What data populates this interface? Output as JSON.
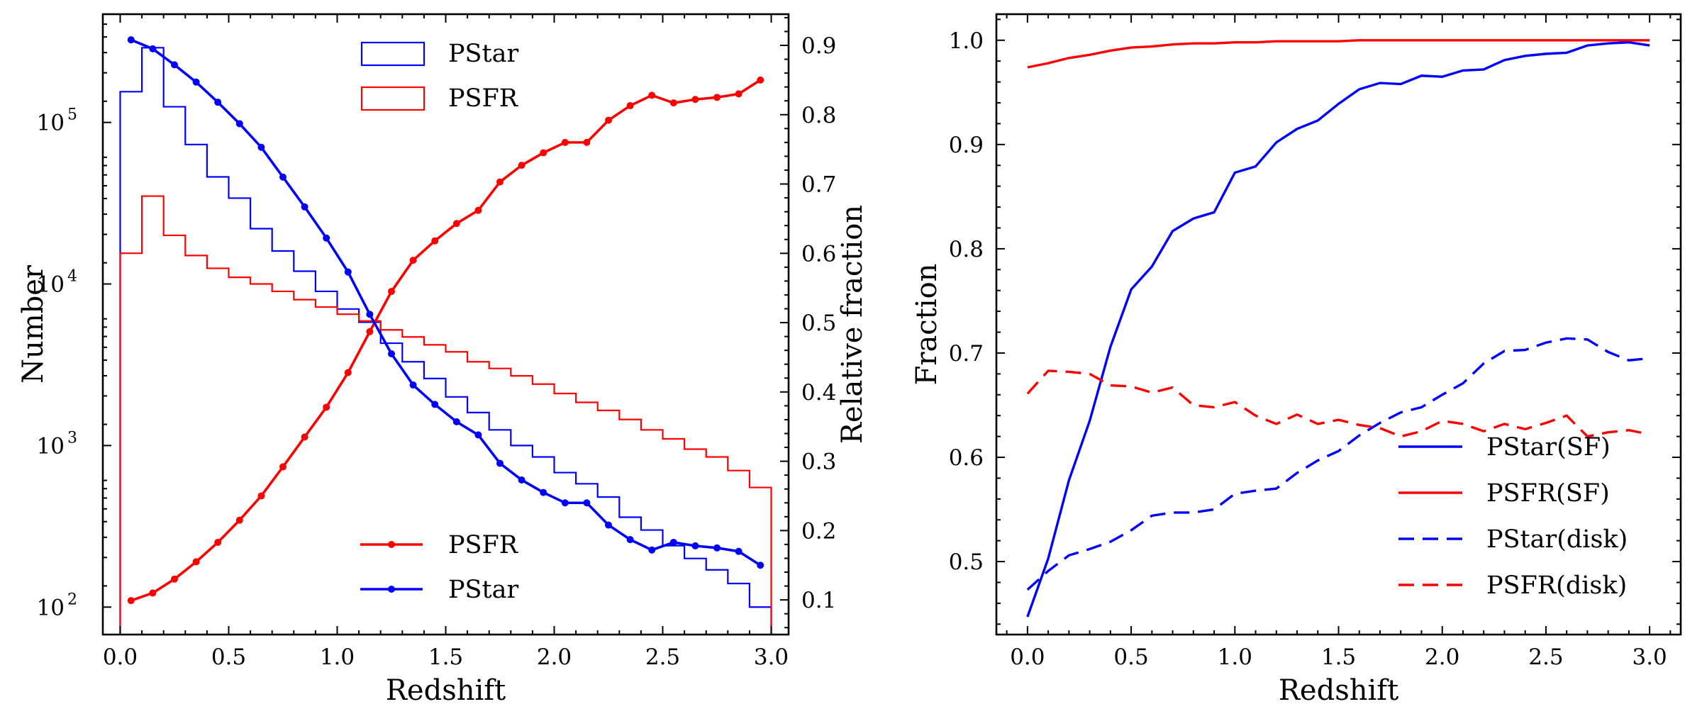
{
  "chart_data": [
    {
      "type": "line",
      "title": "",
      "xlabel": "Redshift",
      "ylabel": "Number",
      "y2label": "Relative fraction",
      "xlim": [
        -0.08,
        3.08
      ],
      "ylim_log10": [
        1.83,
        5.67
      ],
      "y2lim": [
        0.05,
        0.945
      ],
      "x_ticks": [
        0.0,
        0.5,
        1.0,
        1.5,
        2.0,
        2.5,
        3.0
      ],
      "x_tick_labels": [
        "0.0",
        "0.5",
        "1.0",
        "1.5",
        "2.0",
        "2.5",
        "3.0"
      ],
      "y_ticks_log10": [
        2,
        3,
        4,
        5
      ],
      "y_tick_labels": [
        "10",
        "10",
        "10",
        "10"
      ],
      "y_tick_exponents": [
        "2",
        "3",
        "4",
        "5"
      ],
      "y2_ticks": [
        0.1,
        0.2,
        0.3,
        0.4,
        0.5,
        0.6,
        0.7,
        0.8,
        0.9
      ],
      "y2_tick_labels": [
        "0.1",
        "0.2",
        "0.3",
        "0.4",
        "0.5",
        "0.6",
        "0.7",
        "0.8",
        "0.9"
      ],
      "histogram_bin_edges": [
        0.0,
        0.1,
        0.2,
        0.3,
        0.4,
        0.5,
        0.6,
        0.7,
        0.8,
        0.9,
        1.0,
        1.1,
        1.2,
        1.3,
        1.4,
        1.5,
        1.6,
        1.7,
        1.8,
        1.9,
        2.0,
        2.1,
        2.2,
        2.3,
        2.4,
        2.5,
        2.6,
        2.7,
        2.8,
        2.9,
        3.0
      ],
      "histograms": [
        {
          "name": "PStar",
          "color": "#0000ff",
          "counts": [
            155000,
            290000,
            125000,
            73000,
            46000,
            34000,
            22000,
            16000,
            12000,
            9000,
            7000,
            5800,
            4300,
            3300,
            2600,
            2000,
            1600,
            1250,
            1000,
            850,
            680,
            580,
            480,
            360,
            300,
            240,
            200,
            170,
            140,
            100
          ]
        },
        {
          "name": "PSFR",
          "color": "#ff0000",
          "counts": [
            15500,
            35000,
            20000,
            15000,
            12500,
            11000,
            10000,
            9000,
            8000,
            7200,
            6500,
            5900,
            5200,
            4700,
            4200,
            3800,
            3300,
            3000,
            2700,
            2400,
            2100,
            1850,
            1650,
            1450,
            1250,
            1100,
            950,
            850,
            700,
            550
          ]
        }
      ],
      "series": [
        {
          "name": "PSFR",
          "axis": "right",
          "color": "#ff0000",
          "x": [
            0.05,
            0.15,
            0.25,
            0.35,
            0.45,
            0.55,
            0.65,
            0.75,
            0.85,
            0.95,
            1.05,
            1.15,
            1.25,
            1.35,
            1.45,
            1.55,
            1.65,
            1.75,
            1.85,
            1.95,
            2.05,
            2.15,
            2.25,
            2.35,
            2.45,
            2.55,
            2.65,
            2.75,
            2.85,
            2.95
          ],
          "values": [
            0.099,
            0.11,
            0.13,
            0.155,
            0.183,
            0.215,
            0.25,
            0.292,
            0.335,
            0.378,
            0.428,
            0.487,
            0.545,
            0.59,
            0.618,
            0.643,
            0.662,
            0.703,
            0.727,
            0.745,
            0.76,
            0.76,
            0.792,
            0.813,
            0.828,
            0.817,
            0.822,
            0.825,
            0.83,
            0.85
          ]
        },
        {
          "name": "PStar",
          "axis": "right",
          "color": "#0000ff",
          "x": [
            0.05,
            0.15,
            0.25,
            0.35,
            0.45,
            0.55,
            0.65,
            0.75,
            0.85,
            0.95,
            1.05,
            1.15,
            1.25,
            1.35,
            1.45,
            1.55,
            1.65,
            1.75,
            1.85,
            1.95,
            2.05,
            2.15,
            2.25,
            2.35,
            2.45,
            2.55,
            2.65,
            2.75,
            2.85,
            2.95
          ],
          "values": [
            0.908,
            0.895,
            0.872,
            0.847,
            0.818,
            0.787,
            0.753,
            0.71,
            0.667,
            0.622,
            0.573,
            0.512,
            0.455,
            0.41,
            0.382,
            0.357,
            0.338,
            0.297,
            0.273,
            0.255,
            0.24,
            0.24,
            0.208,
            0.187,
            0.172,
            0.183,
            0.178,
            0.175,
            0.17,
            0.15
          ]
        }
      ],
      "legends": [
        {
          "position": "top-center",
          "entries": [
            {
              "label": "PStar",
              "color": "#0000ff",
              "style": "step"
            },
            {
              "label": "PSFR",
              "color": "#ff0000",
              "style": "step"
            }
          ]
        },
        {
          "position": "bottom-center",
          "entries": [
            {
              "label": "PSFR",
              "color": "#ff0000",
              "style": "line-marker"
            },
            {
              "label": "PStar",
              "color": "#0000ff",
              "style": "line-marker"
            }
          ]
        }
      ]
    },
    {
      "type": "line",
      "title": "",
      "xlabel": "Redshift",
      "ylabel": "Fraction",
      "xlim": [
        -0.15,
        3.15
      ],
      "ylim": [
        0.43,
        1.025
      ],
      "x_ticks": [
        0.0,
        0.5,
        1.0,
        1.5,
        2.0,
        2.5,
        3.0
      ],
      "x_tick_labels": [
        "0.0",
        "0.5",
        "1.0",
        "1.5",
        "2.0",
        "2.5",
        "3.0"
      ],
      "y_ticks": [
        0.5,
        0.6,
        0.7,
        0.8,
        0.9,
        1.0
      ],
      "y_tick_labels": [
        "0.5",
        "0.6",
        "0.7",
        "0.8",
        "0.9",
        "1.0"
      ],
      "x": [
        0.0,
        0.1,
        0.2,
        0.3,
        0.4,
        0.5,
        0.6,
        0.7,
        0.8,
        0.9,
        1.0,
        1.1,
        1.2,
        1.3,
        1.4,
        1.5,
        1.6,
        1.7,
        1.8,
        1.9,
        2.0,
        2.1,
        2.2,
        2.3,
        2.4,
        2.5,
        2.6,
        2.7,
        2.8,
        2.9,
        3.0
      ],
      "series": [
        {
          "name": "PStar(SF)",
          "color": "#0000ff",
          "dash": "solid",
          "values": [
            0.447,
            0.503,
            0.578,
            0.635,
            0.706,
            0.761,
            0.783,
            0.817,
            0.829,
            0.835,
            0.873,
            0.879,
            0.902,
            0.915,
            0.923,
            0.939,
            0.953,
            0.959,
            0.958,
            0.966,
            0.965,
            0.971,
            0.972,
            0.981,
            0.985,
            0.987,
            0.988,
            0.995,
            0.997,
            0.998,
            0.995
          ]
        },
        {
          "name": "PSFR(SF)",
          "color": "#ff0000",
          "dash": "solid",
          "values": [
            0.974,
            0.978,
            0.983,
            0.986,
            0.99,
            0.993,
            0.994,
            0.996,
            0.997,
            0.997,
            0.998,
            0.998,
            0.999,
            0.999,
            0.999,
            0.999,
            1.0,
            1.0,
            1.0,
            1.0,
            1.0,
            1.0,
            1.0,
            1.0,
            1.0,
            1.0,
            1.0,
            1.0,
            1.0,
            1.0,
            1.0
          ]
        },
        {
          "name": "PStar(disk)",
          "color": "#0000ff",
          "dash": "dashed",
          "values": [
            0.473,
            0.491,
            0.506,
            0.512,
            0.519,
            0.53,
            0.544,
            0.547,
            0.547,
            0.55,
            0.565,
            0.568,
            0.57,
            0.585,
            0.597,
            0.606,
            0.621,
            0.633,
            0.643,
            0.648,
            0.66,
            0.671,
            0.69,
            0.702,
            0.703,
            0.71,
            0.714,
            0.713,
            0.701,
            0.693,
            0.695
          ]
        },
        {
          "name": "PSFR(disk)",
          "color": "#ff0000",
          "dash": "dashed",
          "values": [
            0.661,
            0.683,
            0.682,
            0.68,
            0.669,
            0.668,
            0.662,
            0.667,
            0.65,
            0.648,
            0.653,
            0.64,
            0.632,
            0.641,
            0.632,
            0.636,
            0.631,
            0.628,
            0.62,
            0.625,
            0.635,
            0.632,
            0.625,
            0.632,
            0.627,
            0.633,
            0.64,
            0.62,
            0.624,
            0.626,
            0.622
          ]
        }
      ],
      "legends": [
        {
          "position": "lower-right",
          "entries": [
            {
              "label": "PStar(SF)",
              "color": "#0000ff",
              "style": "solid"
            },
            {
              "label": "PSFR(SF)",
              "color": "#ff0000",
              "style": "solid"
            },
            {
              "label": "PStar(disk)",
              "color": "#0000ff",
              "style": "dashed"
            },
            {
              "label": "PSFR(disk)",
              "color": "#ff0000",
              "style": "dashed"
            }
          ]
        }
      ]
    }
  ]
}
